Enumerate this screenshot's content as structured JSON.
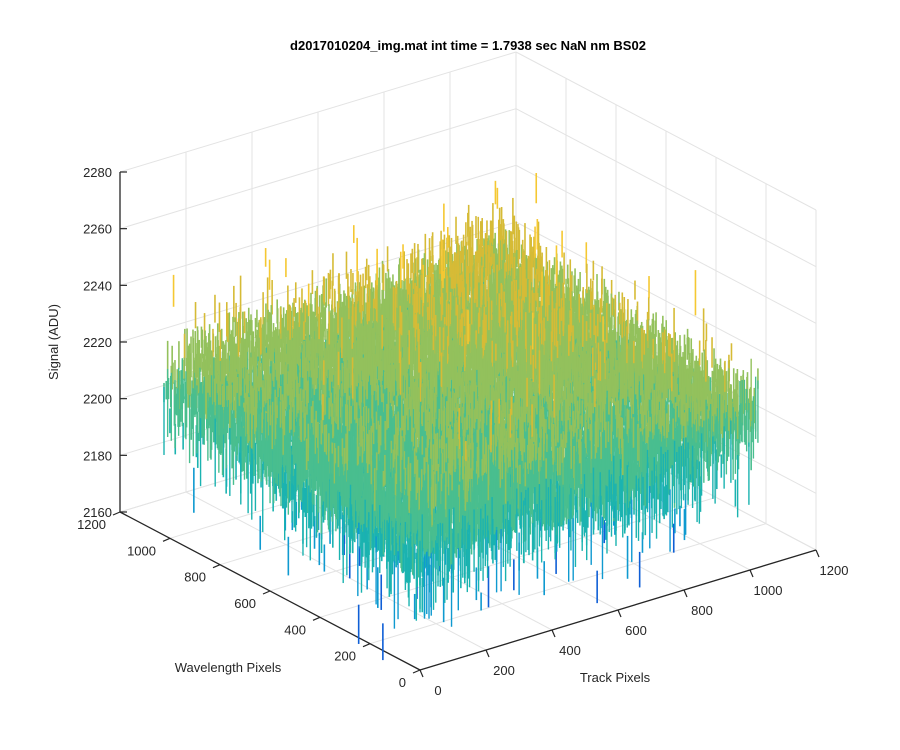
{
  "chart_data": {
    "type": "surface",
    "title": "d2017010204_img.mat int time = 1.7938 sec  NaN nm BS02",
    "xlabel": "Track Pixels",
    "ylabel": "Wavelength Pixels",
    "zlabel": "Signal (ADU)",
    "xlim": [
      0,
      1200
    ],
    "ylim": [
      0,
      1200
    ],
    "zlim": [
      2160,
      2280
    ],
    "x_ticks": [
      "0",
      "200",
      "400",
      "600",
      "800",
      "1000",
      "1200"
    ],
    "y_ticks": [
      "0",
      "200",
      "400",
      "600",
      "800",
      "1000",
      "1200"
    ],
    "z_ticks": [
      "2160",
      "2180",
      "2200",
      "2220",
      "2240",
      "2260",
      "2280"
    ],
    "grid": true,
    "box": false,
    "colormap": "parula",
    "colors": [
      "#0f5fd6",
      "#0f9ad0",
      "#1bb3b0",
      "#49be8f",
      "#93c15c",
      "#d6bb36",
      "#f5c832"
    ],
    "surface": {
      "x_extent": [
        0,
        1024
      ],
      "y_extent": [
        0,
        1024
      ],
      "mean_signal": 2213,
      "min_signal": 2163,
      "max_signal": 2262,
      "far_corner_mean": 2230,
      "near_corner_mean": 2206
    }
  }
}
